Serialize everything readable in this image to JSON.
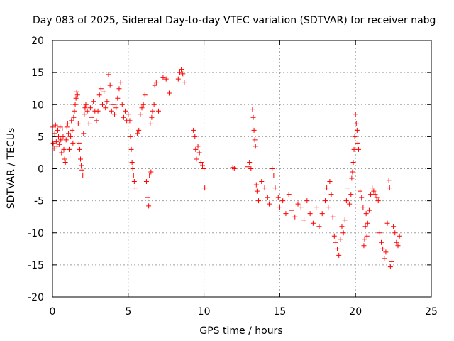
{
  "chart_data": {
    "type": "scatter",
    "title": "Day 083 of 2025, Sidereal Day-to-day VTEC variation (SDTVAR) for receiver nabg",
    "xlabel": "GPS time / hours",
    "ylabel": "SDTVAR / TECUs",
    "xlim": [
      0,
      25
    ],
    "ylim": [
      -20,
      20
    ],
    "xticks": [
      0,
      5,
      10,
      15,
      20,
      25
    ],
    "yticks": [
      -20,
      -15,
      -10,
      -5,
      0,
      5,
      10,
      15,
      20
    ],
    "xtick_labels": [
      "0",
      "5",
      "10",
      "15",
      "20",
      "25"
    ],
    "ytick_labels": [
      "-20",
      "-15",
      "-10",
      "-5",
      "0",
      "5",
      "10",
      "15",
      "20"
    ],
    "grid": true,
    "marker": "+",
    "color": "#ff0000",
    "series": [
      {
        "name": "SDTVAR",
        "points": [
          [
            0.0,
            6.5
          ],
          [
            0.05,
            4.0
          ],
          [
            0.1,
            3.2
          ],
          [
            0.15,
            5.5
          ],
          [
            0.2,
            6.8
          ],
          [
            0.25,
            4.2
          ],
          [
            0.3,
            3.5
          ],
          [
            0.35,
            6.0
          ],
          [
            0.4,
            5.0
          ],
          [
            0.45,
            3.8
          ],
          [
            0.5,
            6.5
          ],
          [
            0.55,
            4.5
          ],
          [
            0.6,
            2.5
          ],
          [
            0.65,
            6.2
          ],
          [
            0.7,
            5.0
          ],
          [
            0.75,
            3.0
          ],
          [
            0.8,
            1.5
          ],
          [
            0.85,
            1.0
          ],
          [
            0.9,
            4.5
          ],
          [
            0.95,
            6.5
          ],
          [
            1.0,
            7.0
          ],
          [
            1.05,
            5.5
          ],
          [
            1.1,
            3.0
          ],
          [
            1.15,
            2.0
          ],
          [
            1.2,
            5.0
          ],
          [
            1.25,
            7.5
          ],
          [
            1.3,
            6.0
          ],
          [
            1.35,
            4.0
          ],
          [
            1.4,
            8.0
          ],
          [
            1.45,
            9.0
          ],
          [
            1.5,
            10.0
          ],
          [
            1.55,
            11.0
          ],
          [
            1.6,
            12.0
          ],
          [
            1.65,
            11.5
          ],
          [
            1.7,
            7.0
          ],
          [
            1.75,
            4.0
          ],
          [
            1.8,
            3.0
          ],
          [
            1.85,
            1.5
          ],
          [
            1.9,
            0.5
          ],
          [
            1.95,
            -0.2
          ],
          [
            2.0,
            -1.0
          ],
          [
            2.05,
            5.5
          ],
          [
            2.1,
            8.5
          ],
          [
            2.15,
            9.5
          ],
          [
            2.2,
            10.0
          ],
          [
            2.3,
            9.0
          ],
          [
            2.4,
            7.0
          ],
          [
            2.5,
            9.5
          ],
          [
            2.6,
            8.0
          ],
          [
            2.7,
            10.5
          ],
          [
            2.8,
            9.0
          ],
          [
            2.9,
            7.5
          ],
          [
            3.0,
            9.0
          ],
          [
            3.1,
            11.5
          ],
          [
            3.2,
            12.5
          ],
          [
            3.3,
            10.0
          ],
          [
            3.4,
            12.0
          ],
          [
            3.5,
            9.5
          ],
          [
            3.6,
            10.5
          ],
          [
            3.7,
            14.7
          ],
          [
            3.8,
            13.0
          ],
          [
            3.9,
            9.0
          ],
          [
            4.0,
            10.0
          ],
          [
            4.1,
            8.5
          ],
          [
            4.2,
            9.5
          ],
          [
            4.3,
            11.0
          ],
          [
            4.4,
            12.5
          ],
          [
            4.5,
            13.5
          ],
          [
            4.6,
            10.0
          ],
          [
            4.7,
            8.0
          ],
          [
            4.8,
            9.0
          ],
          [
            4.9,
            7.5
          ],
          [
            5.0,
            8.5
          ],
          [
            5.1,
            7.5
          ],
          [
            5.15,
            5.0
          ],
          [
            5.2,
            3.0
          ],
          [
            5.25,
            1.0
          ],
          [
            5.3,
            0.0
          ],
          [
            5.35,
            -1.0
          ],
          [
            5.4,
            -2.0
          ],
          [
            5.45,
            -3.0
          ],
          [
            5.6,
            5.5
          ],
          [
            5.7,
            6.0
          ],
          [
            5.8,
            8.5
          ],
          [
            5.9,
            9.5
          ],
          [
            6.0,
            10.0
          ],
          [
            6.1,
            11.5
          ],
          [
            6.2,
            -2.0
          ],
          [
            6.3,
            -4.5
          ],
          [
            6.35,
            -5.8
          ],
          [
            6.4,
            -1.0
          ],
          [
            6.5,
            -0.5
          ],
          [
            6.45,
            7.0
          ],
          [
            6.55,
            8.0
          ],
          [
            6.6,
            9.0
          ],
          [
            6.7,
            10.0
          ],
          [
            6.75,
            13.0
          ],
          [
            6.85,
            13.5
          ],
          [
            7.0,
            9.0
          ],
          [
            7.3,
            14.2
          ],
          [
            7.5,
            14.0
          ],
          [
            7.7,
            11.8
          ],
          [
            8.3,
            14.0
          ],
          [
            8.4,
            15.0
          ],
          [
            8.5,
            15.5
          ],
          [
            8.6,
            14.8
          ],
          [
            8.7,
            13.5
          ],
          [
            9.3,
            6.0
          ],
          [
            9.4,
            5.0
          ],
          [
            9.45,
            3.0
          ],
          [
            9.5,
            1.5
          ],
          [
            9.6,
            3.5
          ],
          [
            9.7,
            2.5
          ],
          [
            9.8,
            1.0
          ],
          [
            9.9,
            0.5
          ],
          [
            10.0,
            0.0
          ],
          [
            10.05,
            -3.0
          ],
          [
            11.9,
            0.2
          ],
          [
            12.0,
            0.0
          ],
          [
            12.9,
            0.3
          ],
          [
            13.0,
            1.0
          ],
          [
            13.1,
            0.0
          ],
          [
            13.2,
            9.3
          ],
          [
            13.25,
            8.0
          ],
          [
            13.3,
            6.0
          ],
          [
            13.35,
            4.5
          ],
          [
            13.4,
            3.5
          ],
          [
            13.45,
            -2.5
          ],
          [
            13.5,
            -3.5
          ],
          [
            13.6,
            -5.0
          ],
          [
            13.8,
            -2.0
          ],
          [
            14.0,
            -3.0
          ],
          [
            14.2,
            -4.5
          ],
          [
            14.3,
            -5.5
          ],
          [
            14.5,
            0.0
          ],
          [
            14.6,
            -1.0
          ],
          [
            14.7,
            -3.0
          ],
          [
            14.9,
            -4.5
          ],
          [
            15.0,
            -6.0
          ],
          [
            15.2,
            -5.0
          ],
          [
            15.4,
            -7.0
          ],
          [
            15.6,
            -4.0
          ],
          [
            15.8,
            -6.5
          ],
          [
            16.0,
            -7.5
          ],
          [
            16.2,
            -5.5
          ],
          [
            16.4,
            -6.0
          ],
          [
            16.6,
            -8.0
          ],
          [
            16.8,
            -5.0
          ],
          [
            17.0,
            -7.0
          ],
          [
            17.2,
            -8.5
          ],
          [
            17.4,
            -6.0
          ],
          [
            17.6,
            -9.0
          ],
          [
            17.8,
            -7.0
          ],
          [
            18.0,
            -5.0
          ],
          [
            18.1,
            -3.0
          ],
          [
            18.2,
            -6.0
          ],
          [
            18.3,
            -2.0
          ],
          [
            18.4,
            -4.0
          ],
          [
            18.5,
            -7.5
          ],
          [
            18.6,
            -10.5
          ],
          [
            18.7,
            -11.5
          ],
          [
            18.8,
            -12.5
          ],
          [
            18.9,
            -13.5
          ],
          [
            19.0,
            -11.0
          ],
          [
            19.1,
            -9.0
          ],
          [
            19.2,
            -10.0
          ],
          [
            19.3,
            -8.0
          ],
          [
            19.4,
            -5.0
          ],
          [
            19.5,
            -3.0
          ],
          [
            19.6,
            -5.5
          ],
          [
            19.7,
            -4.0
          ],
          [
            19.75,
            -1.5
          ],
          [
            19.8,
            -0.5
          ],
          [
            19.85,
            1.0
          ],
          [
            19.9,
            3.0
          ],
          [
            19.95,
            5.0
          ],
          [
            20.0,
            8.5
          ],
          [
            20.05,
            7.0
          ],
          [
            20.1,
            6.0
          ],
          [
            20.15,
            4.0
          ],
          [
            20.2,
            3.0
          ],
          [
            20.3,
            -3.5
          ],
          [
            20.4,
            -4.5
          ],
          [
            20.5,
            -6.0
          ],
          [
            20.55,
            -12.0
          ],
          [
            20.6,
            -11.0
          ],
          [
            20.65,
            -9.0
          ],
          [
            20.7,
            -7.0
          ],
          [
            20.75,
            -10.5
          ],
          [
            20.8,
            -8.5
          ],
          [
            20.9,
            -6.5
          ],
          [
            21.0,
            -4.0
          ],
          [
            21.1,
            -3.0
          ],
          [
            21.2,
            -3.5
          ],
          [
            21.3,
            -4.0
          ],
          [
            21.4,
            -4.5
          ],
          [
            21.5,
            -5.0
          ],
          [
            21.6,
            -10.0
          ],
          [
            21.7,
            -11.5
          ],
          [
            21.8,
            -12.5
          ],
          [
            21.9,
            -14.0
          ],
          [
            22.0,
            -13.0
          ],
          [
            22.1,
            -8.5
          ],
          [
            22.2,
            -1.8
          ],
          [
            22.25,
            -3.0
          ],
          [
            22.3,
            -15.3
          ],
          [
            22.4,
            -14.5
          ],
          [
            22.5,
            -9.0
          ],
          [
            22.6,
            -10.0
          ],
          [
            22.7,
            -11.5
          ],
          [
            22.8,
            -12.0
          ],
          [
            22.9,
            -10.5
          ]
        ]
      }
    ]
  }
}
